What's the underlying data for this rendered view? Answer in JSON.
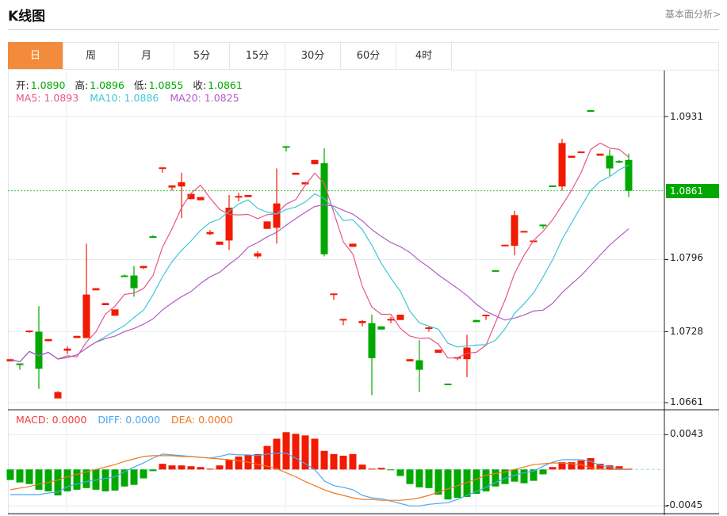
{
  "header": {
    "title": "K线图",
    "link": "基本面分析>"
  },
  "tabs": [
    {
      "label": "日",
      "active": true
    },
    {
      "label": "周"
    },
    {
      "label": "月"
    },
    {
      "label": "5分"
    },
    {
      "label": "15分"
    },
    {
      "label": "30分"
    },
    {
      "label": "60分"
    },
    {
      "label": "4时"
    }
  ],
  "info": {
    "open_label": "开:",
    "open": "1.0890",
    "high_label": "高:",
    "high": "1.0896",
    "low_label": "低:",
    "low": "1.0855",
    "close_label": "收:",
    "close": "1.0861",
    "ma5": "MA5: 1.0893",
    "ma10": "MA10: 1.0886",
    "ma20": "MA20: 1.0825"
  },
  "macd_info": {
    "macd": "MACD: 0.0000",
    "diff": "DIFF: 0.0000",
    "dea": "DEA: 0.0000"
  },
  "colors": {
    "up": "#f21a00",
    "down": "#00a800",
    "ma5": "#e8548a",
    "ma10": "#3fc6d8",
    "ma20": "#b45ac8",
    "diff": "#4aa8f0",
    "dea": "#f07820",
    "accent": "#f28c3c"
  },
  "chart_data": [
    {
      "type": "candlestick",
      "title": "K线图",
      "current_price": "1.0861",
      "yticks": [
        "1.0931",
        "1.0796",
        "1.0728",
        "1.0661"
      ],
      "ylim": [
        1.0661,
        1.0931
      ],
      "ma_periods": [
        5,
        10,
        20
      ],
      "ohlc": [
        [
          1.07,
          1.0702,
          1.07,
          1.0702
        ],
        [
          1.0698,
          1.0698,
          1.0692,
          1.0697
        ],
        [
          1.0728,
          1.0729,
          1.0727,
          1.0729
        ],
        [
          1.0728,
          1.0752,
          1.0674,
          1.0693
        ],
        [
          1.0719,
          1.0721,
          1.0719,
          1.0721
        ],
        [
          1.0665,
          1.0672,
          1.0665,
          1.0671
        ],
        [
          1.071,
          1.0714,
          1.0707,
          1.0712
        ],
        [
          1.0722,
          1.0724,
          1.0722,
          1.0724
        ],
        [
          1.0722,
          1.0811,
          1.0722,
          1.0763
        ],
        [
          1.0767,
          1.0769,
          1.0767,
          1.0769
        ],
        [
          1.0753,
          1.0755,
          1.0753,
          1.0755
        ],
        [
          1.0743,
          1.0749,
          1.0743,
          1.0749
        ],
        [
          1.0781,
          1.0782,
          1.078,
          1.078
        ],
        [
          1.0781,
          1.079,
          1.0761,
          1.0769
        ],
        [
          1.0788,
          1.079,
          1.0787,
          1.079
        ],
        [
          1.0818,
          1.0819,
          1.0817,
          1.0817
        ],
        [
          1.0882,
          1.0883,
          1.0878,
          1.0883
        ],
        [
          1.0864,
          1.0866,
          1.0861,
          1.0866
        ],
        [
          1.0865,
          1.0878,
          1.0835,
          1.0869
        ],
        [
          1.0853,
          1.0858,
          1.0853,
          1.0858
        ],
        [
          1.0852,
          1.0855,
          1.0852,
          1.0855
        ],
        [
          1.082,
          1.0824,
          1.0819,
          1.0822
        ],
        [
          1.081,
          1.0813,
          1.081,
          1.0813
        ],
        [
          1.0814,
          1.0857,
          1.0805,
          1.0845
        ],
        [
          1.0855,
          1.0859,
          1.0851,
          1.0856
        ],
        [
          1.0855,
          1.0857,
          1.0855,
          1.0857
        ],
        [
          1.0799,
          1.0804,
          1.0797,
          1.0802
        ],
        [
          1.0825,
          1.0832,
          1.0825,
          1.0832
        ],
        [
          1.0826,
          1.0882,
          1.0811,
          1.0849
        ],
        [
          1.0903,
          1.0903,
          1.0898,
          1.0902
        ],
        [
          1.0876,
          1.0878,
          1.0876,
          1.0878
        ],
        [
          1.0867,
          1.0869,
          1.0867,
          1.0869
        ],
        [
          1.0886,
          1.089,
          1.0886,
          1.089
        ],
        [
          1.0887,
          1.0901,
          1.0799,
          1.0801
        ],
        [
          1.0763,
          1.0764,
          1.0758,
          1.0764
        ],
        [
          1.0739,
          1.074,
          1.0734,
          1.074
        ],
        [
          1.0808,
          1.0811,
          1.0808,
          1.0811
        ],
        [
          1.0736,
          1.0739,
          1.0733,
          1.0738
        ],
        [
          1.0736,
          1.0744,
          1.0668,
          1.0703
        ],
        [
          1.0733,
          1.0733,
          1.073,
          1.073
        ],
        [
          1.0739,
          1.0742,
          1.0736,
          1.074
        ],
        [
          1.0739,
          1.0744,
          1.0739,
          1.0744
        ],
        [
          1.07,
          1.0702,
          1.07,
          1.0702
        ],
        [
          1.0701,
          1.072,
          1.0671,
          1.0692
        ],
        [
          1.0731,
          1.0733,
          1.0728,
          1.0732
        ],
        [
          1.0708,
          1.0711,
          1.0708,
          1.0711
        ],
        [
          1.0679,
          1.0679,
          1.0678,
          1.0678
        ],
        [
          1.0703,
          1.0704,
          1.0701,
          1.0704
        ],
        [
          1.0702,
          1.0725,
          1.0685,
          1.0713
        ],
        [
          1.0739,
          1.0739,
          1.0737,
          1.0737
        ],
        [
          1.0743,
          1.0744,
          1.0739,
          1.0744
        ],
        [
          1.0786,
          1.0786,
          1.0785,
          1.0785
        ],
        [
          1.0809,
          1.081,
          1.0809,
          1.081
        ],
        [
          1.0809,
          1.0842,
          1.08,
          1.0838
        ],
        [
          1.0822,
          1.0823,
          1.0822,
          1.0823
        ],
        [
          1.0813,
          1.0814,
          1.0813,
          1.0814
        ],
        [
          1.0829,
          1.0829,
          1.0825,
          1.0828
        ],
        [
          1.0866,
          1.0866,
          1.0865,
          1.0865
        ],
        [
          1.0865,
          1.091,
          1.0861,
          1.0906
        ],
        [
          1.0892,
          1.0894,
          1.0892,
          1.0894
        ],
        [
          1.0897,
          1.0898,
          1.0897,
          1.0898
        ],
        [
          1.0937,
          1.0937,
          1.0936,
          1.0936
        ],
        [
          1.0894,
          1.0896,
          1.0894,
          1.0896
        ],
        [
          1.0894,
          1.09,
          1.0875,
          1.0882
        ],
        [
          1.0889,
          1.089,
          1.0887,
          1.0888
        ],
        [
          1.089,
          1.0896,
          1.0855,
          1.0861
        ]
      ]
    },
    {
      "type": "bar+line",
      "title": "MACD",
      "yticks": [
        "0.0043",
        "-0.0045"
      ],
      "ylim": [
        -0.0045,
        0.0043
      ],
      "macd": [
        -0.0013,
        -0.0016,
        -0.0018,
        -0.0025,
        -0.0027,
        -0.0032,
        -0.0027,
        -0.0025,
        -0.0023,
        -0.0025,
        -0.0027,
        -0.0026,
        -0.0021,
        -0.0019,
        -0.0011,
        -0.0002,
        0.0007,
        0.0005,
        0.0005,
        0.0004,
        0.0003,
        0.0001,
        0.0005,
        0.0012,
        0.0016,
        0.0018,
        0.0019,
        0.0029,
        0.0038,
        0.0046,
        0.0044,
        0.0042,
        0.0038,
        0.0023,
        0.0019,
        0.0017,
        0.0019,
        0.0006,
        0.0001,
        0.0002,
        -0.0001,
        -0.0008,
        -0.0018,
        -0.0022,
        -0.0023,
        -0.0031,
        -0.0037,
        -0.0035,
        -0.0034,
        -0.003,
        -0.0027,
        -0.0021,
        -0.0018,
        -0.0015,
        -0.0017,
        -0.0014,
        -0.0006,
        0.0003,
        0.0009,
        0.0009,
        0.0011,
        0.0014,
        0.0007,
        0.0005,
        0.0004,
        0.0001
      ],
      "diff": [
        -0.0031,
        -0.0031,
        -0.0031,
        -0.0031,
        -0.0029,
        -0.0028,
        -0.0021,
        -0.0018,
        -0.0015,
        -0.0013,
        -0.0011,
        -0.0009,
        -0.0003,
        0.0003,
        0.0008,
        0.0014,
        0.0019,
        0.0018,
        0.0017,
        0.0016,
        0.0015,
        0.0014,
        0.0016,
        0.0019,
        0.0018,
        0.0018,
        0.0017,
        0.0019,
        0.002,
        0.002,
        0.0014,
        0.0007,
        0.0,
        -0.0014,
        -0.002,
        -0.0022,
        -0.0025,
        -0.0032,
        -0.0035,
        -0.0036,
        -0.0039,
        -0.0042,
        -0.0045,
        -0.0045,
        -0.0043,
        -0.0042,
        -0.0041,
        -0.0037,
        -0.0032,
        -0.0027,
        -0.0022,
        -0.0016,
        -0.0011,
        -0.0007,
        -0.0004,
        -0.0002,
        0.0004,
        0.0009,
        0.0012,
        0.0012,
        0.0012,
        0.001,
        0.0005,
        0.0003,
        0.0001,
        0.0
      ],
      "dea": [
        -0.0025,
        -0.0023,
        -0.0021,
        -0.0018,
        -0.0016,
        -0.0013,
        -0.0009,
        -0.0006,
        -0.0003,
        0.0,
        0.0003,
        0.0006,
        0.001,
        0.0013,
        0.0016,
        0.0017,
        0.0017,
        0.0017,
        0.0016,
        0.0016,
        0.0015,
        0.0014,
        0.0013,
        0.0012,
        0.0011,
        0.0009,
        0.0006,
        0.0004,
        0.0001,
        -0.0004,
        -0.0009,
        -0.0015,
        -0.002,
        -0.0025,
        -0.0029,
        -0.0032,
        -0.0035,
        -0.0037,
        -0.0037,
        -0.0038,
        -0.0038,
        -0.0038,
        -0.0037,
        -0.0035,
        -0.0032,
        -0.0028,
        -0.0024,
        -0.002,
        -0.0016,
        -0.0012,
        -0.0007,
        -0.0005,
        -0.0003,
        0.0,
        0.0003,
        0.0006,
        0.0007,
        0.0008,
        0.0008,
        0.0007,
        0.0006,
        0.0002,
        0.0001,
        0.0,
        0.0,
        0.0
      ]
    }
  ]
}
